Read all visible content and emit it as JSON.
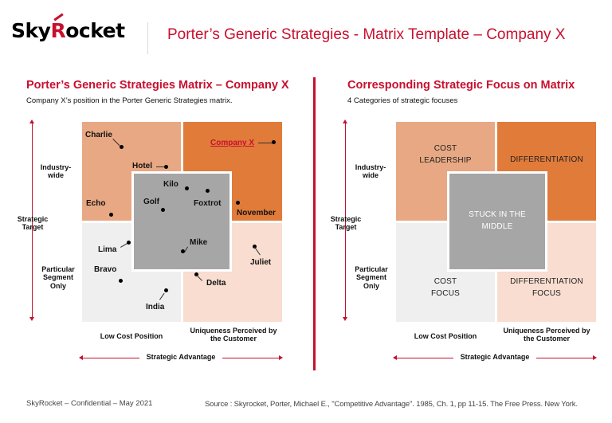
{
  "header": {
    "logo_prefix": "Sky",
    "logo_r": "R",
    "logo_suffix": "ocket",
    "title": "Porter’s Generic Strategies - Matrix Template – Company X"
  },
  "left": {
    "title": "Porter’s Generic Strategies Matrix – Company X",
    "subtitle": "Company X’s position in the Porter Generic Strategies matrix.",
    "y_top": "Industry-\nwide",
    "y_mid": "Strategic\nTarget",
    "y_bot": "Particular\nSegment\nOnly",
    "x_left": "Low Cost Position",
    "x_right": "Uniqueness Perceived by\nthe Customer",
    "x_axis": "Strategic Advantage",
    "points": {
      "charlie": "Charlie",
      "company_x": "Company X",
      "hotel": "Hotel",
      "kilo": "Kilo",
      "golf": "Golf",
      "foxtrot": "Foxtrot",
      "echo": "Echo",
      "november": "November",
      "lima": "Lima",
      "mike": "Mike",
      "juliet": "Juliet",
      "bravo": "Bravo",
      "delta": "Delta",
      "india": "India"
    }
  },
  "right": {
    "title": "Corresponding Strategic Focus on Matrix",
    "subtitle": "4 Categories of strategic focuses",
    "y_top": "Industry-\nwide",
    "y_mid": "Strategic\nTarget",
    "y_bot": "Particular\nSegment\nOnly",
    "x_left": "Low Cost Position",
    "x_right": "Uniqueness Perceived by\nthe Customer",
    "x_axis": "Strategic Advantage",
    "cells": {
      "cost_leadership": "COST\nLEADERSHIP",
      "differentiation": "DIFFERENTIATION",
      "stuck": "STUCK IN THE\nMIDDLE",
      "cost_focus": "COST\nFOCUS",
      "diff_focus": "DIFFERENTIATION\nFOCUS"
    }
  },
  "footer": {
    "left": "SkyRocket – Confidential – May 2021",
    "right": "Source : Skyrocket, Porter, Michael E., \"Competitive Advantage\". 1985, Ch. 1, pp 11-15. The Free Press. New York."
  },
  "colors": {
    "accent": "#c8102e",
    "tl": "#e8a883",
    "tr": "#e07b3a",
    "center": "#a6a6a6",
    "bl": "#efefef",
    "br": "#f8ddd0"
  }
}
